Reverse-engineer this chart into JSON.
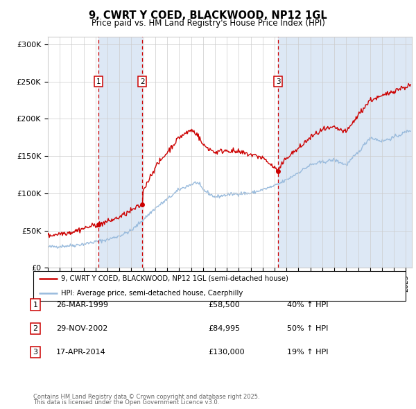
{
  "title": "9, CWRT Y COED, BLACKWOOD, NP12 1GL",
  "subtitle": "Price paid vs. HM Land Registry's House Price Index (HPI)",
  "legend_label_red": "9, CWRT Y COED, BLACKWOOD, NP12 1GL (semi-detached house)",
  "legend_label_blue": "HPI: Average price, semi-detached house, Caerphilly",
  "sales": [
    {
      "label": "1",
      "date_num": 1999.23,
      "price": 58500,
      "date_str": "26-MAR-1999",
      "pct": "40% ↑ HPI"
    },
    {
      "label": "2",
      "date_num": 2002.91,
      "price": 84995,
      "date_str": "29-NOV-2002",
      "pct": "50% ↑ HPI"
    },
    {
      "label": "3",
      "date_num": 2014.29,
      "price": 130000,
      "date_str": "17-APR-2014",
      "pct": "19% ↑ HPI"
    }
  ],
  "ylim": [
    0,
    310000
  ],
  "yticks": [
    0,
    50000,
    100000,
    150000,
    200000,
    250000,
    300000
  ],
  "ytick_labels": [
    "£0",
    "£50K",
    "£100K",
    "£150K",
    "£200K",
    "£250K",
    "£300K"
  ],
  "xmin": 1995.0,
  "xmax": 2025.5,
  "footer_line1": "Contains HM Land Registry data © Crown copyright and database right 2025.",
  "footer_line2": "This data is licensed under the Open Government Licence v3.0.",
  "background_color": "#ffffff",
  "grid_color": "#cccccc",
  "red_color": "#cc0000",
  "blue_color": "#99bbdd",
  "dashed_color": "#cc0000",
  "shade_color": "#dde8f5"
}
